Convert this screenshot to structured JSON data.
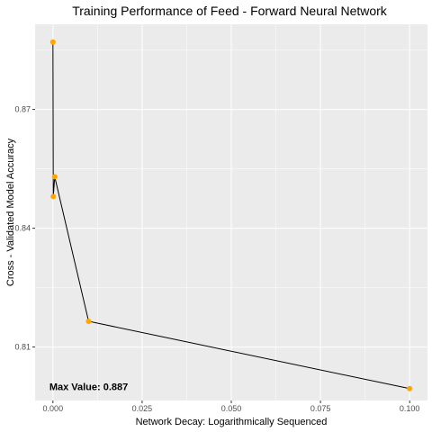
{
  "chart_data": {
    "type": "line",
    "title": "Training Performance of Feed - Forward Neural Network",
    "xlabel": "Network Decay: Logarithmically Sequenced",
    "ylabel": "Cross - Validated Model Accuracy",
    "xlim": [
      -0.005,
      0.105
    ],
    "ylim": [
      0.7965,
      0.8915
    ],
    "x_ticks": [
      0.0,
      0.025,
      0.05,
      0.075,
      0.1
    ],
    "x_tick_labels": [
      "0.000",
      "0.025",
      "0.050",
      "0.075",
      "0.100"
    ],
    "y_ticks": [
      0.81,
      0.84,
      0.87
    ],
    "y_tick_labels": [
      "0.81",
      "0.84",
      "0.87"
    ],
    "grid": true,
    "background": "#ebebeb",
    "grid_major_color": "#ffffff",
    "line_color": "#000000",
    "point_color": "#ffa500",
    "points": [
      {
        "x": 0.0,
        "y": 0.887
      },
      {
        "x": 0.0001,
        "y": 0.848
      },
      {
        "x": 0.0005,
        "y": 0.853
      },
      {
        "x": 0.01,
        "y": 0.8165
      },
      {
        "x": 0.1,
        "y": 0.7995
      }
    ],
    "annotation": {
      "text": "Max Value: 0.887",
      "x": 0.0,
      "y": 0.8
    }
  }
}
